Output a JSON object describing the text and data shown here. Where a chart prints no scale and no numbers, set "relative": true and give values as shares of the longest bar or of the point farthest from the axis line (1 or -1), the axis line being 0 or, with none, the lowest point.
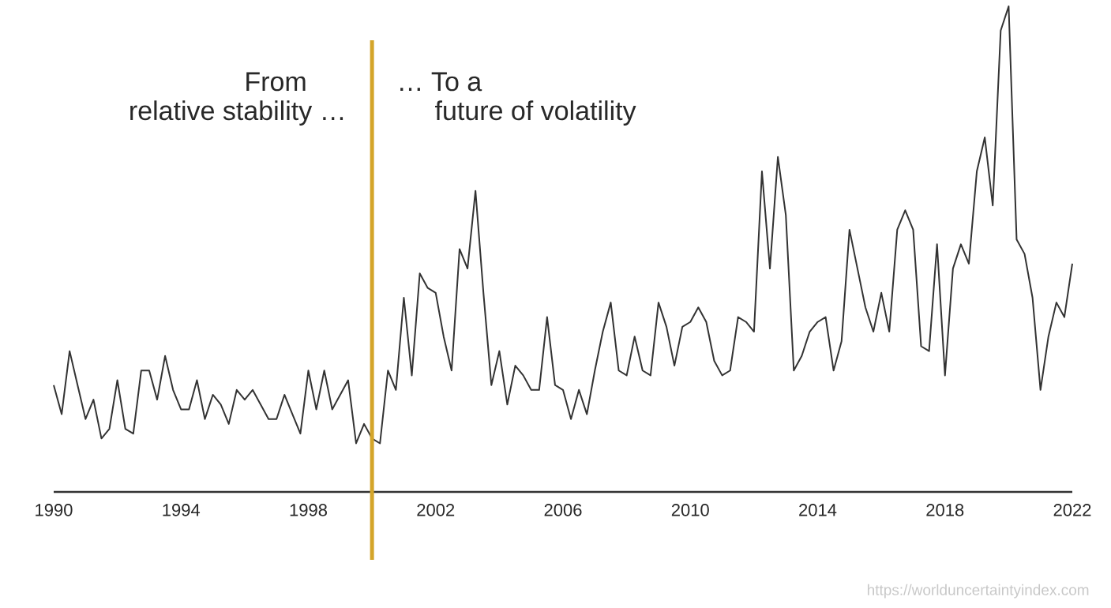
{
  "chart_data": {
    "type": "line",
    "relative": true,
    "x": [
      1990,
      1990.25,
      1990.5,
      1990.75,
      1991,
      1991.25,
      1991.5,
      1991.75,
      1992,
      1992.25,
      1992.5,
      1992.75,
      1993,
      1993.25,
      1993.5,
      1993.75,
      1994,
      1994.25,
      1994.5,
      1994.75,
      1995,
      1995.25,
      1995.5,
      1995.75,
      1996,
      1996.25,
      1996.5,
      1996.75,
      1997,
      1997.25,
      1997.5,
      1997.75,
      1998,
      1998.25,
      1998.5,
      1998.75,
      1999,
      1999.25,
      1999.5,
      1999.75,
      2000,
      2000.25,
      2000.5,
      2000.75,
      2001,
      2001.25,
      2001.5,
      2001.75,
      2002,
      2002.25,
      2002.5,
      2002.75,
      2003,
      2003.25,
      2003.5,
      2003.75,
      2004,
      2004.25,
      2004.5,
      2004.75,
      2005,
      2005.25,
      2005.5,
      2005.75,
      2006,
      2006.25,
      2006.5,
      2006.75,
      2007,
      2007.25,
      2007.5,
      2007.75,
      2008,
      2008.25,
      2008.5,
      2008.75,
      2009,
      2009.25,
      2009.5,
      2009.75,
      2010,
      2010.25,
      2010.5,
      2010.75,
      2011,
      2011.25,
      2011.5,
      2011.75,
      2012,
      2012.25,
      2012.5,
      2012.75,
      2013,
      2013.25,
      2013.5,
      2013.75,
      2014,
      2014.25,
      2014.5,
      2014.75,
      2015,
      2015.25,
      2015.5,
      2015.75,
      2016,
      2016.25,
      2016.5,
      2016.75,
      2017,
      2017.25,
      2017.5,
      2017.75,
      2018,
      2018.25,
      2018.5,
      2018.75,
      2019,
      2019.25,
      2019.5,
      2019.75,
      2020,
      2020.25,
      2020.5,
      2020.75,
      2021,
      2021.25,
      2021.5,
      2021.75,
      2022
    ],
    "values": [
      0.22,
      0.16,
      0.29,
      0.22,
      0.15,
      0.19,
      0.11,
      0.13,
      0.23,
      0.13,
      0.12,
      0.25,
      0.25,
      0.19,
      0.28,
      0.21,
      0.17,
      0.17,
      0.23,
      0.15,
      0.2,
      0.18,
      0.14,
      0.21,
      0.19,
      0.21,
      0.18,
      0.15,
      0.15,
      0.2,
      0.16,
      0.12,
      0.25,
      0.17,
      0.25,
      0.17,
      0.2,
      0.23,
      0.1,
      0.14,
      0.11,
      0.1,
      0.25,
      0.21,
      0.4,
      0.24,
      0.45,
      0.42,
      0.41,
      0.32,
      0.25,
      0.5,
      0.46,
      0.62,
      0.41,
      0.22,
      0.29,
      0.18,
      0.26,
      0.24,
      0.21,
      0.21,
      0.36,
      0.22,
      0.21,
      0.15,
      0.21,
      0.16,
      0.25,
      0.33,
      0.39,
      0.25,
      0.24,
      0.32,
      0.25,
      0.24,
      0.39,
      0.34,
      0.26,
      0.34,
      0.35,
      0.38,
      0.35,
      0.27,
      0.24,
      0.25,
      0.36,
      0.35,
      0.33,
      0.66,
      0.46,
      0.69,
      0.57,
      0.25,
      0.28,
      0.33,
      0.35,
      0.36,
      0.25,
      0.31,
      0.54,
      0.46,
      0.38,
      0.33,
      0.41,
      0.33,
      0.54,
      0.58,
      0.54,
      0.3,
      0.29,
      0.51,
      0.24,
      0.46,
      0.51,
      0.47,
      0.66,
      0.73,
      0.59,
      0.95,
      1,
      0.52,
      0.49,
      0.4,
      0.21,
      0.32,
      0.39,
      0.36,
      0.47
    ],
    "color": "#333333",
    "xlim": [
      1990,
      2022
    ],
    "xticks": [
      {
        "value": 1990,
        "label": "1990"
      },
      {
        "value": 1994,
        "label": "1994"
      },
      {
        "value": 1998,
        "label": "1998"
      },
      {
        "value": 2002,
        "label": "2002"
      },
      {
        "value": 2006,
        "label": "2006"
      },
      {
        "value": 2010,
        "label": "2010"
      },
      {
        "value": 2014,
        "label": "2014"
      },
      {
        "value": 2018,
        "label": "2018"
      },
      {
        "value": 2022,
        "label": "2022"
      }
    ],
    "ref_lines": [
      {
        "axis": "x",
        "value": 2000,
        "color": "#d4a52a"
      }
    ],
    "annotations": [
      "From",
      "relative stability …",
      "… To a",
      "future of volatility",
      "https://worlduncertaintyindex.com"
    ]
  }
}
